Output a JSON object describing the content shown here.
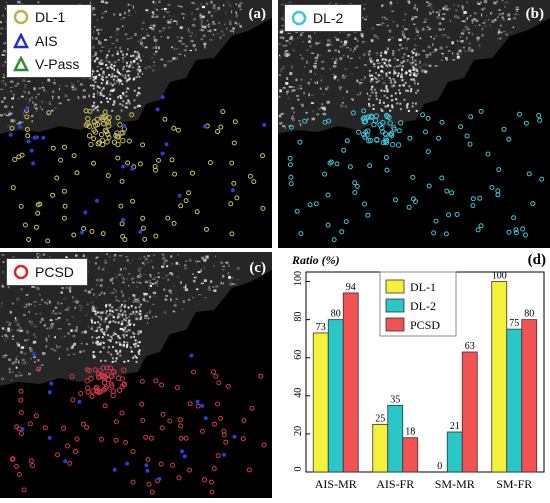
{
  "panels": {
    "a": {
      "label": "(a)",
      "legend": [
        {
          "text": "DL-1",
          "symbol": "circle",
          "color": "#b9b24a"
        },
        {
          "text": "AIS",
          "symbol": "triangle",
          "color": "#1f2fc8"
        },
        {
          "text": "V-Pass",
          "symbol": "triangle",
          "color": "#2e8b2e"
        }
      ],
      "dot_color": "#c8c05a"
    },
    "b": {
      "label": "(b)",
      "legend": [
        {
          "text": "DL-2",
          "symbol": "circle",
          "color": "#3cc6d8"
        }
      ],
      "dot_color": "#43c2d6"
    },
    "c": {
      "label": "(c)",
      "legend": [
        {
          "text": "PCSD",
          "symbol": "circle",
          "color": "#e02424"
        }
      ],
      "dot_color": "#d23a4a"
    },
    "d": {
      "label": "(d)"
    }
  },
  "colors": {
    "land": "#bdbdbd",
    "sea": "#000000",
    "ais": "#2b3fd6",
    "vpass": "#2e9e2e"
  },
  "chart_data": {
    "type": "bar",
    "ylabel": "Ratio (%)",
    "ylim": [
      0,
      105
    ],
    "yticks": [
      0,
      20,
      40,
      60,
      80,
      100
    ],
    "categories": [
      "AIS-MR",
      "AIS-FR",
      "SM-MR",
      "SM-FR"
    ],
    "series": [
      {
        "name": "DL-1",
        "color": "#f5f03a",
        "values": [
          73,
          25,
          0,
          100
        ]
      },
      {
        "name": "DL-2",
        "color": "#29c7c7",
        "values": [
          80,
          35,
          21,
          75
        ]
      },
      {
        "name": "PCSD",
        "color": "#f25252",
        "values": [
          94,
          18,
          63,
          80
        ]
      }
    ],
    "legend_position": "top-center"
  }
}
